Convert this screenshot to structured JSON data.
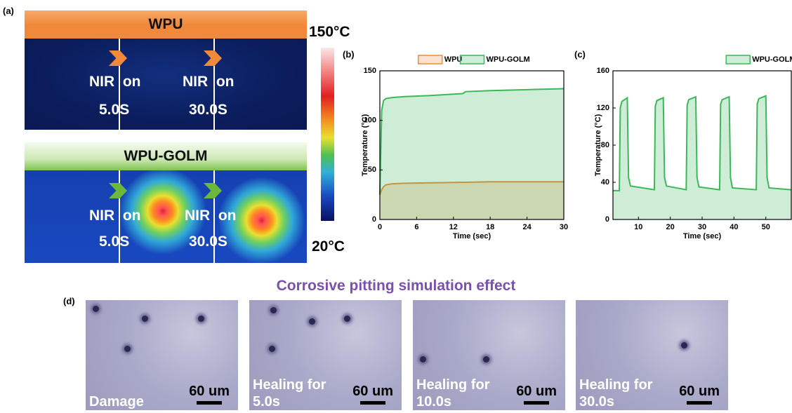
{
  "figure": {
    "panel_a": {
      "label": "(a)",
      "top_banner": "WPU",
      "bottom_banner": "WPU-GOLM",
      "colorbar_max": "150°C",
      "colorbar_min": "20°C",
      "top_markers": [
        {
          "action": "NIR  on",
          "time": "5.0S"
        },
        {
          "action": "NIR  on",
          "time": "30.0S"
        }
      ],
      "bottom_markers": [
        {
          "action": "NIR  on",
          "time": "5.0S"
        },
        {
          "action": "NIR  on",
          "time": "30.0S"
        }
      ]
    },
    "panel_b_label": "(b)",
    "panel_c_label": "(c)",
    "panel_d": {
      "label": "(d)",
      "title": "Corrosive pitting simulation effect",
      "images": [
        {
          "caption": [
            "Damage"
          ],
          "scale": "60 um"
        },
        {
          "caption": [
            "Healing for",
            "5.0s"
          ],
          "scale": "60 um"
        },
        {
          "caption": [
            "Healing for",
            "10.0s"
          ],
          "scale": "60 um"
        },
        {
          "caption": [
            "Healing for",
            "30.0s"
          ],
          "scale": "60 um"
        }
      ]
    }
  },
  "chart_data": [
    {
      "type": "area",
      "xlabel": "Time (sec)",
      "ylabel": "Temperature (°C)",
      "legend": "top",
      "xlim": [
        0,
        30
      ],
      "xticks": [
        0,
        6,
        12,
        18,
        24,
        30
      ],
      "ylim": [
        0,
        150
      ],
      "yticks": [
        0,
        50,
        100,
        150
      ],
      "x": [
        0,
        0.3,
        0.6,
        1,
        2,
        4,
        8,
        13.5,
        14,
        18,
        24,
        30
      ],
      "series": [
        {
          "name": "WPU",
          "color": "#ef8a3a",
          "values": [
            25,
            30,
            33,
            35,
            36,
            36.5,
            37,
            37.5,
            37.5,
            38,
            38,
            38
          ]
        },
        {
          "name": "WPU-GOLM",
          "color": "#3cb85a",
          "values": [
            25,
            110,
            120,
            122,
            123,
            124,
            125,
            127,
            129,
            130,
            131,
            132
          ]
        }
      ]
    },
    {
      "type": "area",
      "xlabel": "Time (sec)",
      "ylabel": "Temperature (°C)",
      "legend": "top-right",
      "xlim": [
        2,
        58
      ],
      "xticks": [
        10,
        20,
        30,
        40,
        50
      ],
      "ylim": [
        0,
        160
      ],
      "yticks": [
        0,
        40,
        80,
        120,
        160
      ],
      "x": [
        2,
        4,
        4.3,
        4.8,
        6.5,
        6.9,
        7.5,
        15,
        15.3,
        15.8,
        17.8,
        18.2,
        18.8,
        25,
        25.3,
        25.8,
        28,
        28.4,
        29,
        35.5,
        35.8,
        36.3,
        38.5,
        38.9,
        39.5,
        47,
        47.3,
        47.8,
        50,
        50.4,
        51,
        58
      ],
      "series": [
        {
          "name": "WPU-GOLM",
          "color": "#3cb85a",
          "values": [
            31,
            31,
            120,
            127,
            131,
            45,
            36,
            32,
            122,
            128,
            131,
            45,
            36,
            32,
            123,
            129,
            132,
            45,
            35,
            32,
            124,
            129,
            132,
            45,
            34,
            32,
            124,
            130,
            133,
            45,
            34,
            32
          ]
        }
      ]
    }
  ]
}
